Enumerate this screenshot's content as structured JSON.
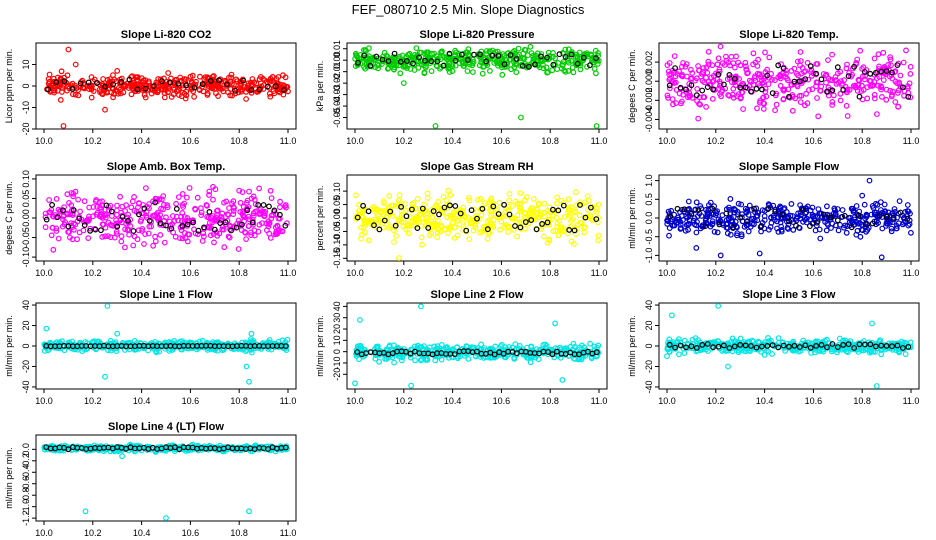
{
  "page_title": "FEF_080710  2.5 Min. Slope Diagnostics",
  "colors": {
    "black": "#000000"
  },
  "chart_data": [
    {
      "type": "scatter",
      "title": "Slope Li-820 CO2",
      "ylabel": "Licor ppm per min.",
      "color": "#ff0000",
      "xlim": [
        10.0,
        11.0
      ],
      "xticks": [
        10.0,
        10.2,
        10.4,
        10.6,
        10.8,
        11.0
      ],
      "ylim": [
        -20,
        20
      ],
      "yticks": [
        -20,
        -10,
        0,
        10
      ],
      "ytick_labels": [
        "-20",
        "-10",
        "0",
        "10"
      ],
      "center": 0,
      "spread": 3,
      "black_points": 30,
      "outliers": [
        [
          10.1,
          17
        ],
        [
          10.08,
          -19
        ],
        [
          10.25,
          -11
        ],
        [
          10.13,
          10
        ],
        [
          10.3,
          7
        ]
      ],
      "seed": 11
    },
    {
      "type": "scatter",
      "title": "Slope Li-820 Pressure",
      "ylabel": "kPa per min.",
      "color": "#00cc00",
      "xlim": [
        10.0,
        11.0
      ],
      "xticks": [
        10.0,
        10.2,
        10.4,
        10.6,
        10.8,
        11.0
      ],
      "ylim": [
        -0.06,
        0.015
      ],
      "yticks": [
        -0.05,
        -0.04,
        -0.03,
        -0.02,
        -0.01,
        0.0,
        0.01
      ],
      "ytick_labels": [
        "-0.05",
        "-0.04",
        "-0.03",
        "-0.02",
        "-0.01",
        "0.00",
        "0.01"
      ],
      "center": 0,
      "spread": 0.006,
      "black_points": 40,
      "outliers": [
        [
          10.33,
          -0.058
        ],
        [
          10.68,
          -0.05
        ],
        [
          10.99,
          -0.059
        ],
        [
          10.2,
          -0.02
        ]
      ],
      "seed": 22
    },
    {
      "type": "scatter",
      "title": "Slope Li-820 Temp.",
      "ylabel": "degees C per min.",
      "color": "#ff00ff",
      "xlim": [
        10.0,
        11.0
      ],
      "xticks": [
        10.0,
        10.2,
        10.4,
        10.6,
        10.8,
        11.0
      ],
      "ylim": [
        -0.005,
        0.004
      ],
      "yticks": [
        -0.004,
        -0.002,
        0.0,
        0.002
      ],
      "ytick_labels": [
        "-0.004",
        "-0.002",
        "0.000",
        "0.002"
      ],
      "center": 0,
      "spread": 0.0018,
      "black_points": 45,
      "outliers": [],
      "seed": 33
    },
    {
      "type": "scatter",
      "title": "Slope Amb. Box Temp.",
      "ylabel": "degees C per min.",
      "color": "#ff00ff",
      "xlim": [
        10.0,
        11.0
      ],
      "xticks": [
        10.0,
        10.2,
        10.4,
        10.6,
        10.8,
        11.0
      ],
      "ylim": [
        -0.11,
        0.11
      ],
      "yticks": [
        -0.1,
        -0.05,
        0.0,
        0.05,
        0.1
      ],
      "ytick_labels": [
        "-0.10",
        "-0.05",
        "0.00",
        "0.05",
        "0.10"
      ],
      "center": 0,
      "spread": 0.04,
      "black_points": 45,
      "outliers": [],
      "seed": 44
    },
    {
      "type": "scatter",
      "title": "Slope Gas Stream RH",
      "ylabel": "percent per min.",
      "color": "#ffff00",
      "xlim": [
        10.0,
        11.0
      ],
      "xticks": [
        10.0,
        10.2,
        10.4,
        10.6,
        10.8,
        11.0
      ],
      "ylim": [
        -0.16,
        0.16
      ],
      "yticks": [
        -0.15,
        -0.1,
        -0.05,
        0.0,
        0.05,
        0.1
      ],
      "ytick_labels": [
        "-0.15",
        "-0.10",
        "-0.05",
        "0.00",
        "0.05",
        "0.10"
      ],
      "center": 0,
      "spread": 0.05,
      "black_points": 45,
      "outliers": [
        [
          10.18,
          -0.15
        ]
      ],
      "seed": 55
    },
    {
      "type": "scatter",
      "title": "Slope Sample Flow",
      "ylabel": "ml/min per min.",
      "color": "#0000cc",
      "xlim": [
        10.0,
        11.0
      ],
      "xticks": [
        10.0,
        10.2,
        10.4,
        10.6,
        10.8,
        11.0
      ],
      "ylim": [
        -1.15,
        1.15
      ],
      "yticks": [
        -1.0,
        -0.5,
        0.0,
        0.5,
        1.0
      ],
      "ytick_labels": [
        "-1.0",
        "-0.5",
        "0.0",
        "0.5",
        "1.0"
      ],
      "center": 0,
      "spread": 0.25,
      "black_points": 35,
      "outliers": [
        [
          10.22,
          -1.0
        ],
        [
          10.38,
          -0.95
        ],
        [
          10.83,
          1.0
        ],
        [
          10.88,
          -1.05
        ],
        [
          10.12,
          -0.8
        ],
        [
          10.8,
          0.6
        ]
      ],
      "seed": 66
    },
    {
      "type": "scatter",
      "title": "Slope Line 1 Flow",
      "ylabel": "ml/min per min.",
      "color": "#00e5e5",
      "xlim": [
        10.0,
        11.0
      ],
      "xticks": [
        10.0,
        10.2,
        10.4,
        10.6,
        10.8,
        11.0
      ],
      "ylim": [
        -42,
        42
      ],
      "yticks": [
        -40,
        -20,
        0,
        20,
        40
      ],
      "ytick_labels": [
        "-40",
        "-20",
        "0",
        "20",
        "40"
      ],
      "center": 0,
      "spread": 3,
      "black_points": 55,
      "black_spread": 0.3,
      "outliers": [
        [
          10.26,
          40
        ],
        [
          10.25,
          -30
        ],
        [
          10.84,
          -35
        ],
        [
          10.83,
          -20
        ],
        [
          10.01,
          17
        ],
        [
          10.3,
          12
        ],
        [
          10.85,
          12
        ]
      ],
      "seed": 77
    },
    {
      "type": "scatter",
      "title": "Slope Line 2 Flow",
      "ylabel": "ml/min per min.",
      "color": "#00e5e5",
      "xlim": [
        10.0,
        11.0
      ],
      "xticks": [
        10.0,
        10.2,
        10.4,
        10.6,
        10.8,
        11.0
      ],
      "ylim": [
        -33,
        43
      ],
      "yticks": [
        -20,
        -10,
        0,
        10,
        20,
        30,
        40
      ],
      "ytick_labels": [
        "-20",
        "-10",
        "0",
        "10",
        "20",
        "30",
        "40"
      ],
      "center": -1,
      "spread": 4,
      "black_points": 55,
      "black_spread": 1.5,
      "outliers": [
        [
          10.27,
          40
        ],
        [
          10.23,
          -30
        ],
        [
          10.02,
          28
        ],
        [
          10.85,
          -25
        ],
        [
          10.82,
          25
        ],
        [
          10.0,
          -28
        ]
      ],
      "seed": 88
    },
    {
      "type": "scatter",
      "title": "Slope Line 3 Flow",
      "ylabel": "ml/min per min.",
      "color": "#00e5e5",
      "xlim": [
        10.0,
        11.0
      ],
      "xticks": [
        10.0,
        10.2,
        10.4,
        10.6,
        10.8,
        11.0
      ],
      "ylim": [
        -42,
        42
      ],
      "yticks": [
        -40,
        -20,
        0,
        20,
        40
      ],
      "ytick_labels": [
        "-40",
        "-20",
        "0",
        "20",
        "40"
      ],
      "center": 0,
      "spread": 4,
      "black_points": 45,
      "black_spread": 2,
      "outliers": [
        [
          10.21,
          40
        ],
        [
          10.02,
          30
        ],
        [
          10.86,
          -40
        ],
        [
          10.84,
          22
        ],
        [
          10.0,
          -10
        ],
        [
          10.25,
          -20
        ]
      ],
      "seed": 99
    },
    {
      "type": "scatter",
      "title": "Slope Line 4 (LT) Flow",
      "ylabel": "ml/min per min.",
      "color": "#00e5e5",
      "xlim": [
        10.0,
        11.0
      ],
      "xticks": [
        10.0,
        10.2,
        10.4,
        10.6,
        10.8,
        11.0
      ],
      "ylim": [
        -1.25,
        0.25
      ],
      "yticks": [
        -1.2,
        -1.0,
        -0.8,
        -0.6,
        -0.4,
        -0.2,
        0.0
      ],
      "ytick_labels": [
        "-1.2",
        "-1.0",
        "-0.8",
        "-0.6",
        "-0.4",
        "-0.2",
        "0.0"
      ],
      "center": 0.02,
      "spread": 0.03,
      "black_points": 55,
      "black_spread": 0.02,
      "outliers": [
        [
          10.17,
          -1.08
        ],
        [
          10.5,
          -1.22
        ],
        [
          10.84,
          -1.08
        ],
        [
          10.32,
          -0.12
        ]
      ],
      "seed": 111
    }
  ]
}
